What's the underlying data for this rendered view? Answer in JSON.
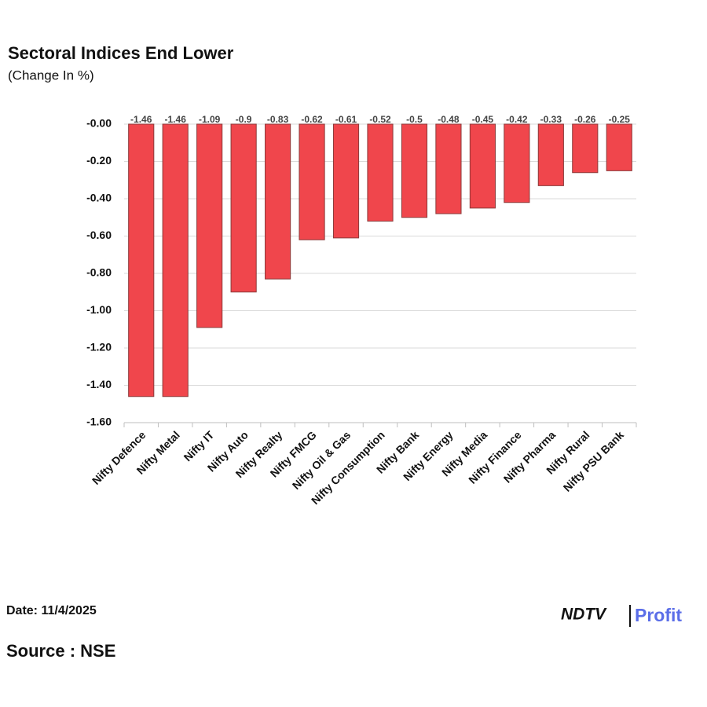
{
  "chart_data": {
    "type": "bar",
    "title": "Sectoral Indices End Lower",
    "subtitle": "(Change In %)",
    "categories": [
      "Nifty Defence",
      "Nifty Metal",
      "Nifty IT",
      "Nifty Auto",
      "Nifty Realty",
      "Nifty FMCG",
      "Nifty Oil & Gas",
      "Nifty Consumption",
      "Nifty Bank",
      "Nifty Energy",
      "Nifty Media",
      "Nifty Finance",
      "Nifty Pharma",
      "Nifty Rural",
      "Nifty PSU Bank"
    ],
    "values": [
      -1.46,
      -1.46,
      -1.09,
      -0.9,
      -0.83,
      -0.62,
      -0.61,
      -0.52,
      -0.5,
      -0.48,
      -0.45,
      -0.42,
      -0.33,
      -0.26,
      -0.25
    ],
    "color": "#f0464c",
    "ylim": [
      -1.6,
      0
    ],
    "yticks": [
      {
        "value": 0,
        "label": "-0.00"
      },
      {
        "value": -0.2,
        "label": "-0.20"
      },
      {
        "value": -0.4,
        "label": "-0.40"
      },
      {
        "value": -0.6,
        "label": "-0.60"
      },
      {
        "value": -0.8,
        "label": "-0.80"
      },
      {
        "value": -1,
        "label": "-1.00"
      },
      {
        "value": -1.2,
        "label": "-1.20"
      },
      {
        "value": -1.4,
        "label": "-1.40"
      },
      {
        "value": -1.6,
        "label": "-1.60"
      }
    ],
    "grid": true
  },
  "footer": {
    "date": "Date: 11/4/2025",
    "source": "Source : NSE",
    "logo": [
      "NDTV",
      "Profit"
    ]
  }
}
